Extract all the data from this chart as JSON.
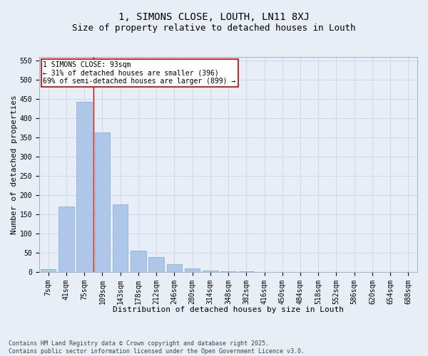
{
  "title_line1": "1, SIMONS CLOSE, LOUTH, LN11 8XJ",
  "title_line2": "Size of property relative to detached houses in Louth",
  "xlabel": "Distribution of detached houses by size in Louth",
  "ylabel": "Number of detached properties",
  "categories": [
    "7sqm",
    "41sqm",
    "75sqm",
    "109sqm",
    "143sqm",
    "178sqm",
    "212sqm",
    "246sqm",
    "280sqm",
    "314sqm",
    "348sqm",
    "382sqm",
    "416sqm",
    "450sqm",
    "484sqm",
    "518sqm",
    "552sqm",
    "586sqm",
    "620sqm",
    "654sqm",
    "688sqm"
  ],
  "values": [
    7,
    170,
    443,
    363,
    177,
    56,
    40,
    20,
    10,
    5,
    3,
    2,
    1,
    1,
    0,
    0,
    1,
    0,
    0,
    0,
    1
  ],
  "bar_color": "#aec6e8",
  "bar_edge_color": "#7bafd4",
  "vline_x": 2.5,
  "vline_color": "#cc0000",
  "annotation_text": "1 SIMONS CLOSE: 93sqm\n← 31% of detached houses are smaller (396)\n69% of semi-detached houses are larger (899) →",
  "annotation_box_color": "#ffffff",
  "annotation_box_edge_color": "#cc0000",
  "ylim": [
    0,
    560
  ],
  "yticks": [
    0,
    50,
    100,
    150,
    200,
    250,
    300,
    350,
    400,
    450,
    500,
    550
  ],
  "grid_color": "#c8d4e8",
  "bg_color": "#e8eef5",
  "footnote": "Contains HM Land Registry data © Crown copyright and database right 2025.\nContains public sector information licensed under the Open Government Licence v3.0.",
  "title1_fontsize": 10,
  "title2_fontsize": 9,
  "xlabel_fontsize": 8,
  "ylabel_fontsize": 8,
  "tick_fontsize": 7,
  "ann_fontsize": 7,
  "footnote_fontsize": 6
}
